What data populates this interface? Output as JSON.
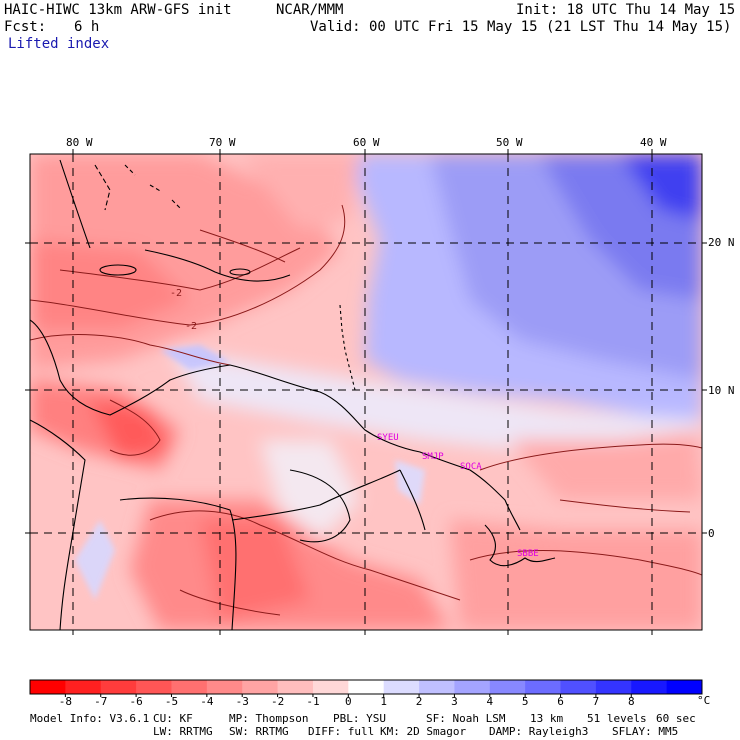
{
  "header": {
    "model": "HAIC-HIWC 13km ARW-GFS init",
    "org": "NCAR/MMM",
    "init": "Init: 18 UTC Thu 14 May 15",
    "fcst_label": "Fcst:",
    "fcst_value": "6 h",
    "valid": "Valid: 00 UTC Fri 15 May 15 (21 LST Thu 14 May 15)",
    "field": "Lifted index"
  },
  "axes": {
    "lon_labels": [
      "80 W",
      "70 W",
      "60 W",
      "50 W",
      "40 W"
    ],
    "lat_labels": [
      "20 N",
      "10 N",
      "0"
    ]
  },
  "stations": [
    "SYEU",
    "SMJP",
    "SOCA",
    "SBBE"
  ],
  "contour_label": "-2",
  "colorbar": {
    "ticks": [
      "-8",
      "-7",
      "-6",
      "-5",
      "-4",
      "-3",
      "-2",
      "-1",
      "0",
      "1",
      "2",
      "3",
      "4",
      "5",
      "6",
      "7",
      "8"
    ],
    "unit": "°C",
    "colors": [
      "#ff0000",
      "#ff2020",
      "#ff3c3c",
      "#ff5656",
      "#ff7070",
      "#ff8a8a",
      "#ffa4a4",
      "#ffbebe",
      "#ffd8d8",
      "#ffffff",
      "#dcdcff",
      "#c0c0ff",
      "#a4a4ff",
      "#8888ff",
      "#6c6cff",
      "#5050ff",
      "#3434ff",
      "#1818ff",
      "#0000ff"
    ]
  },
  "footer": {
    "line1": [
      "Model Info: V3.6.1",
      "CU: KF",
      "MP: Thompson",
      "PBL: YSU",
      "SF: Noah LSM",
      "13 km",
      "51 levels",
      "60 sec"
    ],
    "line2": [
      "LW: RRTMG",
      "SW: RRTMG",
      "DIFF: full",
      "KM: 2D Smagor",
      "DAMP: Rayleigh3",
      "SFLAY: MM5"
    ]
  }
}
